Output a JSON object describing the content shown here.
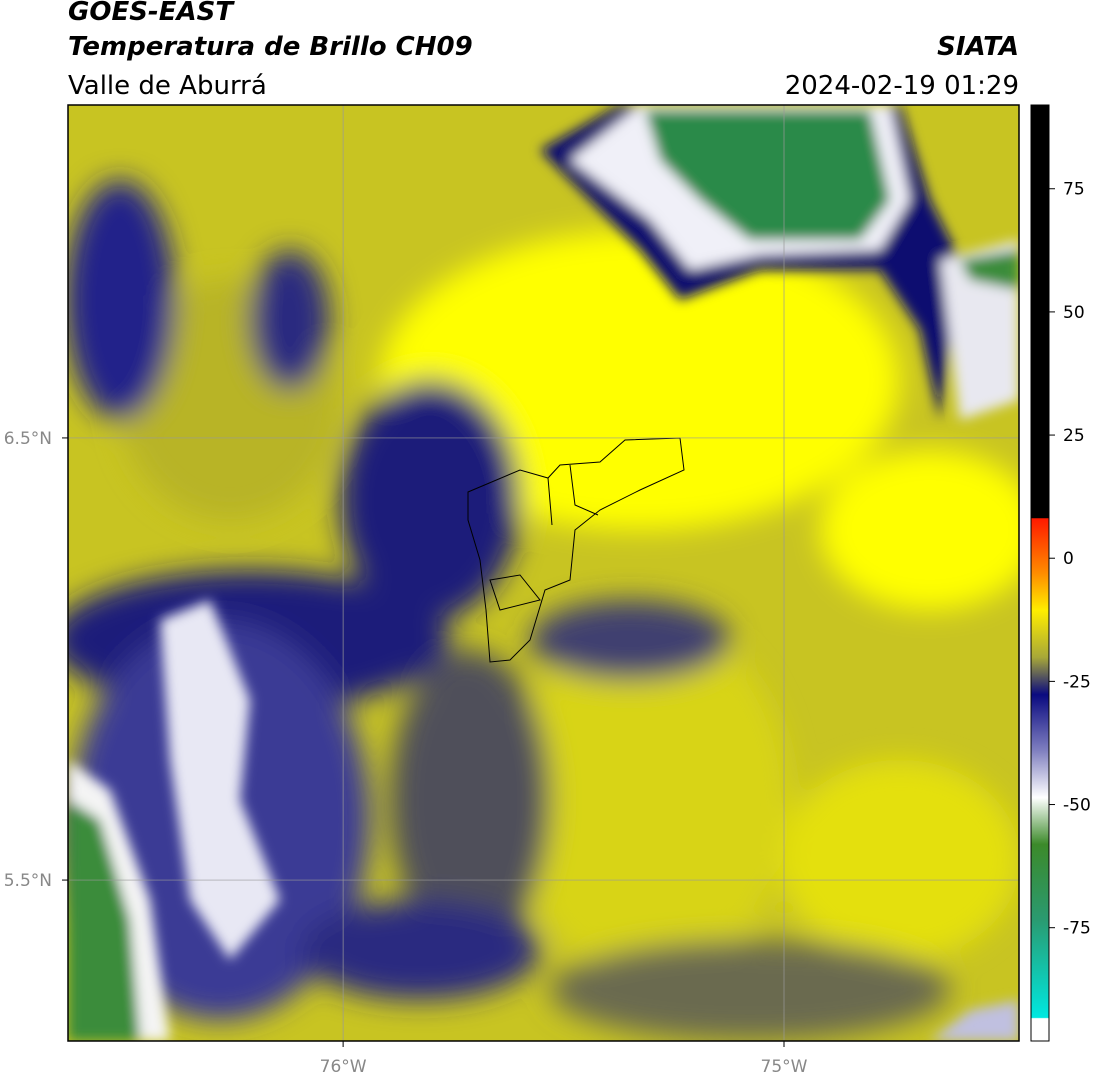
{
  "header": {
    "title": "GOES-EAST",
    "subtitle": "Temperatura de Brillo CH09",
    "region": "Valle de Aburrá",
    "source": "SIATA",
    "datetime": "2024-02-19 01:29"
  },
  "map": {
    "lonlim": [
      -76.624,
      -74.467
    ],
    "latlim": [
      5.136,
      7.253
    ],
    "xticks": [
      {
        "value": -76,
        "label": "76°W"
      },
      {
        "value": -75,
        "label": "75°W"
      }
    ],
    "yticks": [
      {
        "value": 6.5,
        "label": "6.5°N"
      },
      {
        "value": 5.5,
        "label": "5.5°N"
      }
    ]
  },
  "colorbar": {
    "lim": [
      -98,
      92
    ],
    "ticks": [
      75,
      50,
      25,
      0,
      -25,
      -50,
      -75
    ]
  }
}
